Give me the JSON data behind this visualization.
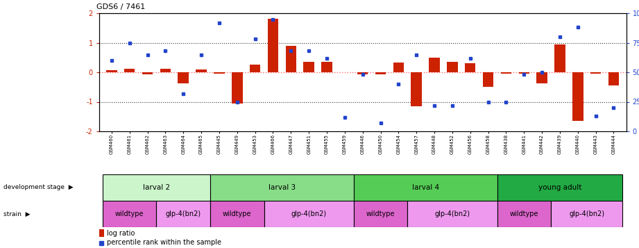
{
  "title": "GDS6 / 7461",
  "samples": [
    "GSM460",
    "GSM461",
    "GSM462",
    "GSM463",
    "GSM464",
    "GSM465",
    "GSM445",
    "GSM449",
    "GSM453",
    "GSM466",
    "GSM447",
    "GSM451",
    "GSM455",
    "GSM459",
    "GSM446",
    "GSM450",
    "GSM454",
    "GSM457",
    "GSM448",
    "GSM452",
    "GSM456",
    "GSM458",
    "GSM438",
    "GSM441",
    "GSM442",
    "GSM439",
    "GSM440",
    "GSM443",
    "GSM444"
  ],
  "log_ratio": [
    0.07,
    0.12,
    -0.08,
    0.12,
    -0.38,
    0.1,
    -0.05,
    -1.05,
    0.25,
    1.82,
    0.9,
    0.35,
    0.35,
    0.0,
    -0.08,
    -0.08,
    0.32,
    -1.15,
    0.5,
    0.35,
    0.3,
    -0.5,
    -0.05,
    -0.05,
    -0.38,
    0.95,
    -1.65,
    -0.05,
    -0.45
  ],
  "percentile": [
    60,
    75,
    65,
    68,
    32,
    65,
    92,
    25,
    78,
    95,
    68,
    68,
    62,
    12,
    48,
    7,
    40,
    65,
    22,
    22,
    62,
    25,
    25,
    48,
    50,
    80,
    88,
    13,
    20
  ],
  "dev_stages": [
    {
      "label": "larval 2",
      "start": 0,
      "end": 6,
      "color": "#ccf5cc"
    },
    {
      "label": "larval 3",
      "start": 6,
      "end": 14,
      "color": "#88dd88"
    },
    {
      "label": "larval 4",
      "start": 14,
      "end": 22,
      "color": "#55cc55"
    },
    {
      "label": "young adult",
      "start": 22,
      "end": 29,
      "color": "#22aa44"
    }
  ],
  "strains": [
    {
      "label": "wildtype",
      "start": 0,
      "end": 3,
      "color": "#dd66cc"
    },
    {
      "label": "glp-4(bn2)",
      "start": 3,
      "end": 6,
      "color": "#ee99ee"
    },
    {
      "label": "wildtype",
      "start": 6,
      "end": 9,
      "color": "#dd66cc"
    },
    {
      "label": "glp-4(bn2)",
      "start": 9,
      "end": 14,
      "color": "#ee99ee"
    },
    {
      "label": "wildtype",
      "start": 14,
      "end": 17,
      "color": "#dd66cc"
    },
    {
      "label": "glp-4(bn2)",
      "start": 17,
      "end": 22,
      "color": "#ee99ee"
    },
    {
      "label": "wildtype",
      "start": 22,
      "end": 25,
      "color": "#dd66cc"
    },
    {
      "label": "glp-4(bn2)",
      "start": 25,
      "end": 29,
      "color": "#ee99ee"
    }
  ],
  "ylim_left": [
    -2,
    2
  ],
  "ylim_right": [
    0,
    100
  ],
  "bar_color": "#cc2200",
  "dot_color": "#2244cc",
  "hline0_color": "#ff6666",
  "dotline_color": "#333333",
  "bg_color": "#ffffff",
  "legend_bar": "log ratio",
  "legend_dot": "percentile rank within the sample",
  "bar_width": 0.6,
  "tick_label_fontsize": 5.5,
  "label_fontsize": 7,
  "title_fontsize": 8
}
